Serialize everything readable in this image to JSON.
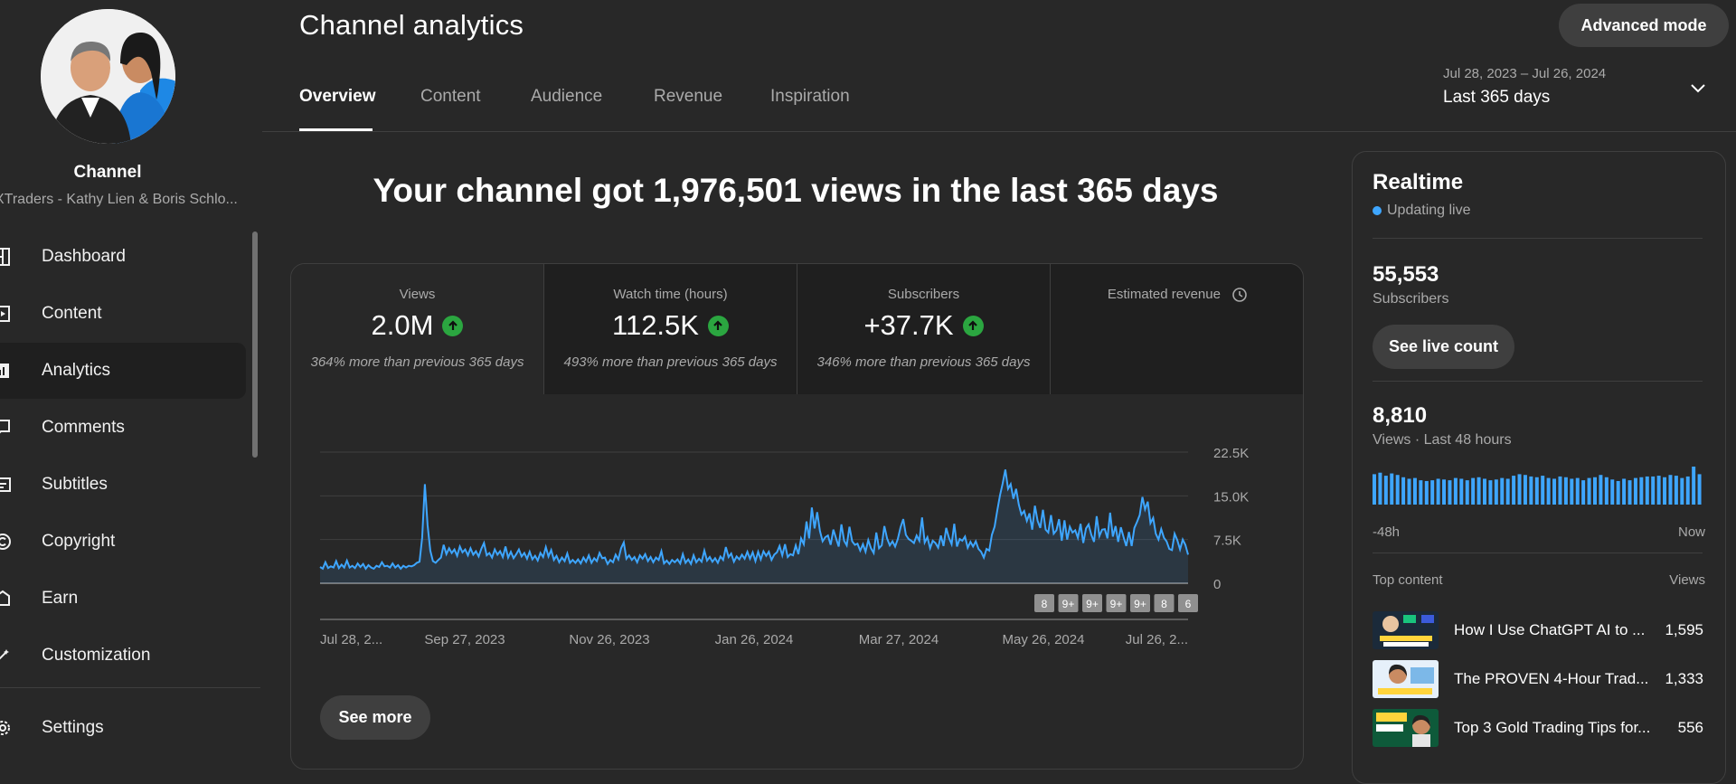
{
  "sidebar": {
    "channel_label": "Channel",
    "channel_name": "XTraders - Kathy Lien & Boris Schlo...",
    "items": [
      {
        "label": "Dashboard",
        "icon": "dashboard-icon"
      },
      {
        "label": "Content",
        "icon": "content-icon"
      },
      {
        "label": "Analytics",
        "icon": "analytics-icon",
        "active": true
      },
      {
        "label": "Comments",
        "icon": "comments-icon"
      },
      {
        "label": "Subtitles",
        "icon": "subtitles-icon"
      },
      {
        "label": "Copyright",
        "icon": "copyright-icon"
      },
      {
        "label": "Earn",
        "icon": "earn-icon"
      },
      {
        "label": "Customization",
        "icon": "customization-icon"
      }
    ],
    "settings_label": "Settings"
  },
  "header": {
    "title": "Channel analytics",
    "advanced_mode": "Advanced mode",
    "tabs": [
      "Overview",
      "Content",
      "Audience",
      "Revenue",
      "Inspiration"
    ],
    "date_range": "Jul 28, 2023 – Jul 26, 2024",
    "date_preset": "Last 365 days"
  },
  "headline": "Your channel got 1,976,501 views in the last 365 days",
  "metrics": [
    {
      "title": "Views",
      "value": "2.0M",
      "note": "364% more than previous 365 days",
      "trend": "up"
    },
    {
      "title": "Watch time (hours)",
      "value": "112.5K",
      "note": "493% more than previous 365 days",
      "trend": "up"
    },
    {
      "title": "Subscribers",
      "value": "+37.7K",
      "note": "346% more than previous 365 days",
      "trend": "up"
    },
    {
      "title": "Estimated revenue",
      "value": "",
      "note": "",
      "icon": "clock-icon"
    }
  ],
  "see_more": "See more",
  "chart_data": {
    "type": "line",
    "ylim": [
      0,
      22500
    ],
    "y_ticks": [
      "0",
      "7.5K",
      "15.0K",
      "22.5K"
    ],
    "x_ticks": [
      "Jul 28, 2...",
      "Sep 27, 2023",
      "Nov 26, 2023",
      "Jan 26, 2024",
      "Mar 27, 2024",
      "May 26, 2024",
      "Jul 26, 2..."
    ],
    "series_color": "#3ea6ff",
    "markers": [
      "8",
      "9+",
      "9+",
      "9+",
      "9+",
      "8",
      "6"
    ],
    "series": [
      {
        "values": [
          2800,
          2500,
          3600,
          2600,
          2900,
          2700,
          3800,
          2600,
          3200,
          2700,
          3900,
          2700,
          3000,
          2600,
          3400,
          2800,
          3300,
          2500,
          3100,
          2700,
          2500,
          3000,
          2800,
          3600,
          2900,
          3000,
          2700,
          3400,
          2700,
          3100,
          2500,
          3000,
          2700,
          3000,
          2900,
          3100,
          3500,
          3700,
          7800,
          17000,
          10000,
          5600,
          3800,
          3500,
          4000,
          4400,
          6600,
          5000,
          6000,
          5200,
          5800,
          4700,
          6300,
          5300,
          5800,
          4800,
          6000,
          4900,
          5500,
          4600,
          5900,
          6900,
          4800,
          5200,
          4400,
          5800,
          4900,
          5500,
          4500,
          6300,
          4400,
          5400,
          4300,
          5000,
          5800,
          4600,
          5200,
          4200,
          5400,
          4100,
          4700,
          3900,
          5200,
          4500,
          6200,
          4600,
          5700,
          4000,
          4700,
          3600,
          4400,
          3800,
          5100,
          3500,
          4000,
          3500,
          4100,
          3400,
          4400,
          3700,
          4800,
          3500,
          4300,
          3800,
          5200,
          4300,
          4400,
          3300,
          4000,
          3600,
          4900,
          4100,
          6000,
          7000,
          4200,
          4800,
          4000,
          4500,
          3600,
          4800,
          4200,
          5000,
          3800,
          4500,
          3600,
          4400,
          4000,
          5500,
          3400,
          3900,
          3300,
          4000,
          3600,
          4100,
          3400,
          5000,
          3500,
          4100,
          3300,
          4800,
          3600,
          4200,
          3700,
          5600,
          3900,
          4500,
          3700,
          4300,
          3500,
          4600,
          4000,
          6200,
          4500,
          5100,
          3700,
          4600,
          4100,
          4900,
          4200,
          5400,
          4200,
          5300,
          3800,
          5400,
          4100,
          5500,
          4700,
          5400,
          4000,
          4900,
          5300,
          6400,
          4800,
          6700,
          4500,
          5000,
          4800,
          6500,
          5000,
          7700,
          6700,
          10600,
          7700,
          13000,
          9400,
          12200,
          9000,
          7200,
          7900,
          8200,
          6600,
          9200,
          7700,
          6300,
          10100,
          7300,
          6500,
          9700,
          7200,
          6600,
          6800,
          5600,
          6700,
          5400,
          7400,
          6000,
          5200,
          8700,
          6000,
          6500,
          9800,
          7700,
          6500,
          7200,
          6300,
          7600,
          9600,
          11000,
          8300,
          7600,
          7300,
          6900,
          8200,
          7300,
          11300,
          7000,
          7900,
          6000,
          7300,
          6900,
          6100,
          8200,
          6400,
          9500,
          7800,
          6700,
          10200,
          6300,
          7600,
          7300,
          8000,
          6100,
          7100,
          6300,
          7200,
          5900,
          5400,
          4400,
          5900,
          5600,
          8300,
          9700,
          12500,
          15100,
          17100,
          19500,
          16200,
          17000,
          14500,
          16200,
          13500,
          11800,
          12400,
          10700,
          12000,
          9200,
          13300,
          10700,
          9500,
          12600,
          9200,
          8700,
          11700,
          8500,
          9100,
          11000,
          7300,
          10800,
          7500,
          9700,
          8700,
          9100,
          7800,
          10200,
          6900,
          9400,
          10100,
          8300,
          7100,
          11500,
          8100,
          9200,
          9300,
          7700,
          12100,
          8000,
          9800,
          7100,
          9600,
          7900,
          6400,
          8800,
          6400,
          9500,
          10500,
          11700,
          14800,
          12700,
          14000,
          10300,
          11200,
          8500,
          7500,
          9300,
          7800,
          7200,
          5900,
          5700,
          8500,
          7400,
          5800,
          7500,
          6600,
          4900
        ]
      }
    ]
  },
  "realtime": {
    "title": "Realtime",
    "updating": "Updating live",
    "subscribers_value": "55,553",
    "subscribers_label": "Subscribers",
    "live_count_button": "See live count",
    "views_value": "8,810",
    "views_label": "Views · Last 48 hours",
    "axis_start": "-48h",
    "axis_end": "Now",
    "hourly_views": [
      200,
      210,
      190,
      205,
      195,
      180,
      170,
      175,
      160,
      155,
      160,
      170,
      165,
      160,
      175,
      170,
      160,
      175,
      180,
      170,
      160,
      165,
      175,
      170,
      190,
      200,
      195,
      185,
      180,
      190,
      175,
      170,
      185,
      180,
      170,
      175,
      160,
      175,
      180,
      195,
      180,
      165,
      155,
      170,
      160,
      175,
      180,
      185,
      185,
      190,
      180,
      195,
      190,
      175,
      185,
      250,
      200
    ],
    "top_content_label": "Top content",
    "views_col": "Views",
    "top_content": [
      {
        "title": "How I Use ChatGPT AI to ...",
        "views": "1,595"
      },
      {
        "title": "The PROVEN 4-Hour Trad...",
        "views": "1,333"
      },
      {
        "title": "Top 3 Gold Trading Tips for...",
        "views": "556"
      }
    ]
  }
}
